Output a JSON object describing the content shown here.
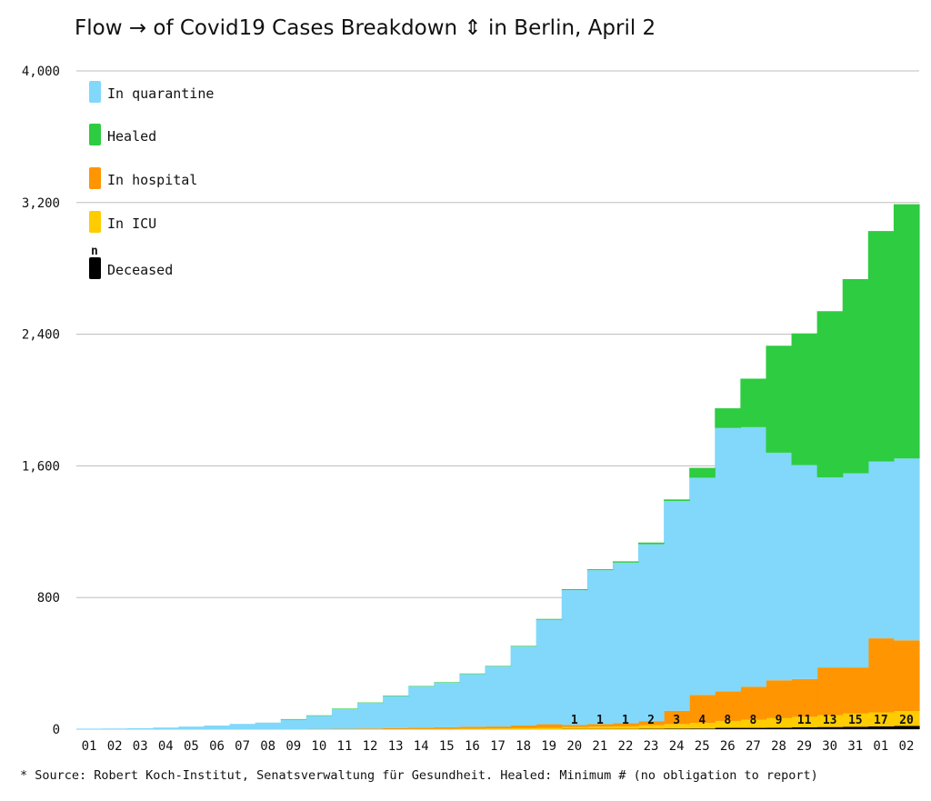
{
  "chart_data": {
    "type": "area",
    "stacking": "stacked-step",
    "title": "Flow → of Covid19 Cases Breakdown ⇕ in Berlin, April 2",
    "xlabel": "",
    "ylabel": "",
    "ylim": [
      0,
      4000
    ],
    "yticks": [
      0,
      800,
      1600,
      2400,
      3200,
      4000
    ],
    "ytick_labels": [
      "0",
      "800",
      "1,600",
      "2,400",
      "3,200",
      "4,000"
    ],
    "grid": true,
    "legend_position": "top-left",
    "categories": [
      "01",
      "02",
      "03",
      "04",
      "05",
      "06",
      "07",
      "08",
      "09",
      "10",
      "11",
      "12",
      "13",
      "14",
      "15",
      "16",
      "17",
      "18",
      "19",
      "20",
      "21",
      "22",
      "23",
      "24",
      "25",
      "26",
      "27",
      "28",
      "29",
      "30",
      "31",
      "01",
      "02"
    ],
    "series": [
      {
        "name": "Deceased",
        "color": "#000000",
        "values": [
          0,
          0,
          0,
          0,
          0,
          0,
          0,
          0,
          0,
          0,
          0,
          0,
          0,
          0,
          0,
          0,
          0,
          0,
          0,
          1,
          1,
          1,
          2,
          3,
          4,
          8,
          8,
          9,
          11,
          13,
          15,
          17,
          20
        ]
      },
      {
        "name": "In ICU",
        "color": "#FFCC00",
        "values": [
          0,
          0,
          0,
          0,
          0,
          0,
          0,
          0,
          0,
          0,
          0,
          0,
          0,
          1,
          2,
          3,
          4,
          6,
          8,
          12,
          14,
          16,
          22,
          28,
          34,
          42,
          50,
          58,
          64,
          72,
          80,
          85,
          90
        ]
      },
      {
        "name": "In hospital",
        "color": "#FF9500",
        "values": [
          0,
          0,
          0,
          0,
          0,
          0,
          0,
          0,
          0,
          1,
          2,
          4,
          6,
          8,
          10,
          12,
          12,
          16,
          22,
          12,
          16,
          20,
          25,
          80,
          170,
          180,
          200,
          230,
          230,
          290,
          280,
          450,
          430
        ]
      },
      {
        "name": "In quarantine",
        "color": "#81D8FA",
        "values": [
          3,
          4,
          6,
          10,
          16,
          22,
          32,
          40,
          58,
          80,
          120,
          155,
          195,
          250,
          270,
          320,
          365,
          480,
          635,
          820,
          935,
          975,
          1075,
          1275,
          1320,
          1600,
          1577,
          1383,
          1300,
          1155,
          1180,
          1075,
          1105
        ]
      },
      {
        "name": "Healed",
        "color": "#2ECC40",
        "values": [
          0,
          0,
          0,
          0,
          0,
          0,
          0,
          0,
          1,
          1,
          1,
          2,
          2,
          2,
          2,
          3,
          3,
          4,
          5,
          6,
          6,
          8,
          10,
          10,
          60,
          120,
          295,
          650,
          800,
          1010,
          1180,
          1400,
          1545
        ]
      }
    ],
    "bar_labels": {
      "categories": [
        "20",
        "21",
        "22",
        "23",
        "24",
        "25",
        "26",
        "27",
        "28",
        "29",
        "30",
        "31",
        "01",
        "02"
      ],
      "values": [
        "1",
        "1",
        "1",
        "2",
        "3",
        "4",
        "8",
        "8",
        "9",
        "11",
        "13",
        "15",
        "17",
        "20"
      ]
    },
    "legend": [
      {
        "name": "In quarantine",
        "color": "#81D8FA"
      },
      {
        "name": "Healed",
        "color": "#2ECC40"
      },
      {
        "name": "In hospital",
        "color": "#FF9500"
      },
      {
        "name": "In ICU",
        "color": "#FFCC00"
      },
      {
        "name": "Deceased",
        "color": "#000000",
        "marker_label": "n"
      }
    ],
    "source_note": "* Source: Robert Koch-Institut, Senatsverwaltung für Gesundheit. Healed: Minimum # (no obligation to report)"
  }
}
